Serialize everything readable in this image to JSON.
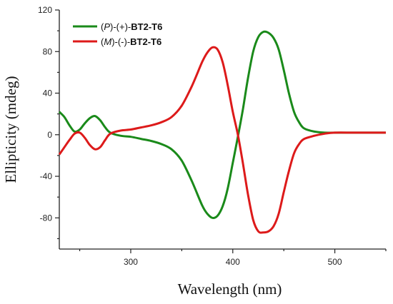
{
  "chart_data": {
    "type": "line",
    "xlabel": "Wavelength  (nm)",
    "ylabel": "Ellipticity (mdeg)",
    "xlim": [
      230,
      550
    ],
    "ylim": [
      -110,
      120
    ],
    "x_ticks": [
      300,
      400,
      500
    ],
    "y_ticks": [
      -80,
      -40,
      0,
      40,
      80,
      120
    ],
    "grid": false,
    "legend_position": "top-left",
    "series": [
      {
        "name_parts": [
          "(",
          "P",
          ")-(+)-",
          "BT2-T6"
        ],
        "color": "#1a8a1a",
        "x": [
          230,
          235,
          240,
          245,
          250,
          255,
          260,
          265,
          270,
          275,
          280,
          290,
          300,
          310,
          320,
          330,
          340,
          350,
          360,
          370,
          375,
          380,
          385,
          390,
          395,
          400,
          405,
          410,
          415,
          420,
          425,
          430,
          435,
          440,
          445,
          450,
          455,
          460,
          465,
          470,
          480,
          490,
          500,
          520,
          550
        ],
        "y": [
          22,
          17,
          9,
          3,
          5,
          11,
          16,
          18,
          14,
          7,
          2,
          -1,
          -2,
          -4,
          -6,
          -9,
          -14,
          -25,
          -45,
          -68,
          -76,
          -80,
          -78,
          -69,
          -52,
          -27,
          -2,
          25,
          55,
          80,
          94,
          99,
          98,
          93,
          82,
          62,
          40,
          22,
          12,
          6,
          3,
          2,
          2,
          2,
          2
        ]
      },
      {
        "name_parts": [
          "(",
          "M",
          ")-(-)-",
          "BT2-T6"
        ],
        "color": "#dd1a1a",
        "x": [
          230,
          235,
          240,
          245,
          250,
          255,
          260,
          265,
          270,
          275,
          280,
          290,
          300,
          310,
          320,
          330,
          340,
          350,
          360,
          370,
          375,
          380,
          385,
          390,
          395,
          400,
          405,
          410,
          415,
          420,
          425,
          430,
          435,
          440,
          445,
          450,
          455,
          460,
          465,
          470,
          480,
          490,
          500,
          520,
          550
        ],
        "y": [
          -19,
          -12,
          -5,
          1,
          2,
          -3,
          -10,
          -14,
          -12,
          -5,
          1,
          4,
          5,
          7,
          9,
          12,
          17,
          28,
          47,
          70,
          79,
          84,
          82,
          70,
          48,
          22,
          0,
          -28,
          -58,
          -82,
          -93,
          -94,
          -93,
          -88,
          -76,
          -55,
          -35,
          -18,
          -9,
          -4,
          -1,
          1,
          2,
          2,
          2
        ]
      }
    ]
  }
}
